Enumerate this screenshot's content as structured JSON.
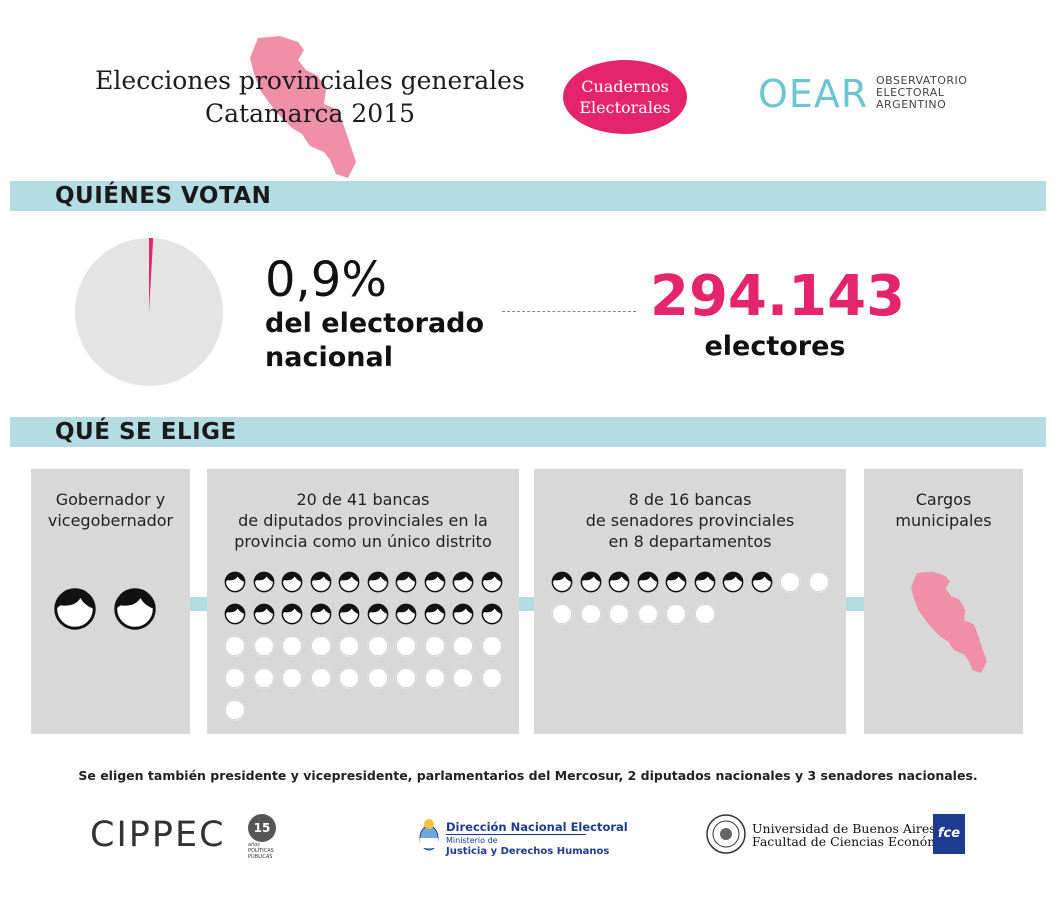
{
  "header": {
    "title_line1": "Elecciones provinciales generales",
    "title_line2": "Catamarca 2015",
    "badge_line1": "Cuadernos",
    "badge_line2": "Electorales",
    "oear_mark": "OEAR",
    "oear_line1": "OBSERVATORIO",
    "oear_line2": "ELECTORAL",
    "oear_line3": "ARGENTINO"
  },
  "colors": {
    "accent_pink": "#e4246b",
    "map_pink": "#ef8fa8",
    "bar_blue": "#b3dce3",
    "box_gray": "#d8d8d8",
    "pie_gray": "#e4e4e4",
    "oear_teal": "#6cc6d1"
  },
  "quienes_votan": {
    "section_title": "QUIÉNES VOTAN",
    "percent": "0,9%",
    "percent_value": 0.9,
    "percent_line1": "del electorado",
    "percent_line2": "nacional",
    "electores_number": "294.143",
    "electores_label": "electores"
  },
  "que_se_elige": {
    "section_title": "QUÉ SE ELIGE",
    "boxes": [
      {
        "line1": "Gobernador y",
        "line2": "vicegobernador",
        "line3": "",
        "icon": "face-icon",
        "elected": 2,
        "total": 2
      },
      {
        "line1": "20 de 41 bancas",
        "line2": "de diputados provinciales en la",
        "line3": "provincia como un único distrito",
        "icon": "face-icon",
        "elected": 20,
        "total": 41
      },
      {
        "line1": "8 de 16 bancas",
        "line2": "de senadores provinciales",
        "line3": "en 8 departamentos",
        "icon": "face-icon",
        "elected": 8,
        "total": 16
      },
      {
        "line1": "Cargos",
        "line2": "municipales",
        "line3": "",
        "icon": "catamarca-map-icon"
      }
    ]
  },
  "footer": {
    "note": "Se eligen también presidente y vicepresidente, parlamentarios del Mercosur, 2 diputados nacionales y 3 senadores nacionales.",
    "cippec": "CIPPEC",
    "cippec_badge": "15",
    "cippec_badge_sub": "años",
    "cippec_small1": "POLÍTICAS",
    "cippec_small2": "PÚBLICAS",
    "dne_title": "Dirección Nacional Electoral",
    "dne_sub1": "Ministerio de",
    "dne_sub2": "Justicia y Derechos Humanos",
    "uba_line1": "Universidad de Buenos Aires",
    "uba_line2": "Facultad de Ciencias Económicas",
    "fce": "fce"
  }
}
